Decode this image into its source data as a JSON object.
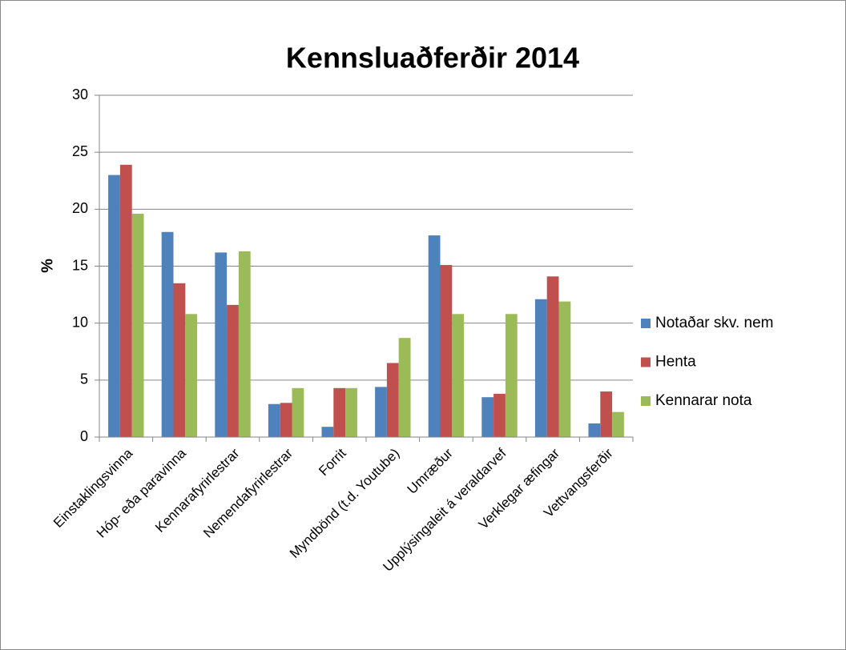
{
  "chart_data": {
    "type": "bar",
    "title": "Kennsluaðferðir 2014",
    "y_label": "%",
    "categories": [
      "Einstaklingsvinna",
      "Hóp- eða paravinna",
      "Kennarafyrirlestrar",
      "Nemendafyrirlestrar",
      "Forrit",
      "Myndbönd (t.d. Youtube)",
      "Umræður",
      "Upplýsingaleit á veraldarvef",
      "Verklegar æfingar",
      "Vettvangsferðir"
    ],
    "series": [
      {
        "name": "Notaðar skv. nem",
        "color": "#4f81bd",
        "values": [
          23.0,
          18.0,
          16.2,
          2.9,
          0.9,
          4.4,
          17.7,
          3.5,
          12.1,
          1.2
        ]
      },
      {
        "name": "Henta",
        "color": "#c0504d",
        "values": [
          23.9,
          13.5,
          11.6,
          3.0,
          4.3,
          6.5,
          15.1,
          3.8,
          14.1,
          4.0
        ]
      },
      {
        "name": "Kennarar nota",
        "color": "#9bbb59",
        "values": [
          19.6,
          10.8,
          16.3,
          4.3,
          4.3,
          8.7,
          10.8,
          10.8,
          11.9,
          2.2
        ]
      }
    ],
    "ylim": [
      0,
      30
    ],
    "yticks": [
      0,
      5,
      10,
      15,
      20,
      25,
      30
    ],
    "grid": true,
    "legend": "right"
  }
}
